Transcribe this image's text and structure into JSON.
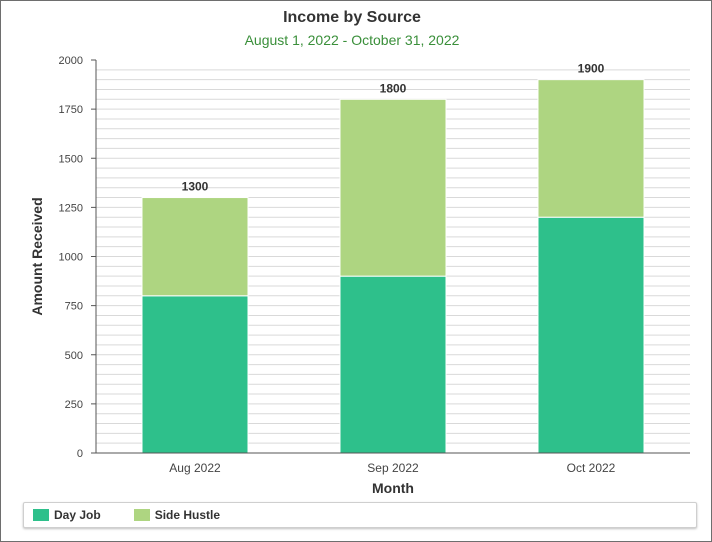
{
  "chart_data": {
    "type": "bar",
    "stacked": true,
    "title": "Income by Source",
    "subtitle": "August 1, 2022 - October 31, 2022",
    "xlabel": "Month",
    "ylabel": "Amount Received",
    "categories": [
      "Aug 2022",
      "Sep 2022",
      "Oct 2022"
    ],
    "series": [
      {
        "name": "Day Job",
        "color": "#2ec08b",
        "values": [
          800,
          900,
          1200
        ]
      },
      {
        "name": "Side Hustle",
        "color": "#aed581",
        "values": [
          500,
          900,
          700
        ]
      }
    ],
    "totals": [
      "1300",
      "1800",
      "1900"
    ],
    "ylim": [
      0,
      2000
    ],
    "yticks": [
      "0",
      "250",
      "500",
      "750",
      "1000",
      "1250",
      "1500",
      "1750",
      "2000"
    ],
    "grid": true,
    "legend_position": "bottom"
  }
}
